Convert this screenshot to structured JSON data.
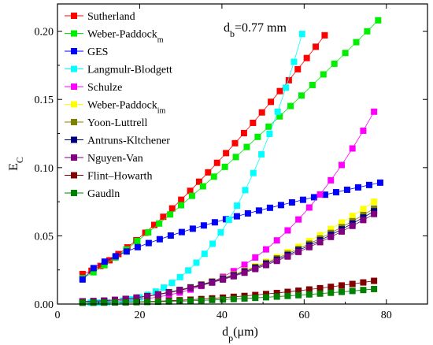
{
  "chart_data": {
    "type": "scatter",
    "annotation": {
      "base": "d",
      "sub": "b",
      "rest": "=0.77 mm"
    },
    "xlabel": {
      "base": "d",
      "sub": "p",
      "rest": "(μm)"
    },
    "ylabel": {
      "base": "E",
      "sub": "C",
      "rest": ""
    },
    "xlim": [
      0,
      90
    ],
    "ylim": [
      0,
      0.22
    ],
    "xticks": [
      "0",
      "20",
      "40",
      "60",
      "80"
    ],
    "yticks": [
      "0.00",
      "0.05",
      "0.10",
      "0.15",
      "0.20"
    ],
    "legend_position": "top-left",
    "series": [
      {
        "name": "Sutherland",
        "sub": "",
        "color": "#ff0000",
        "x": [
          6.1,
          65
        ],
        "y": [
          0.022,
          0.197
        ],
        "exp": 1.3
      },
      {
        "name": "Weber-Paddock",
        "sub": "m",
        "color": "#00ee00",
        "x": [
          6.1,
          78
        ],
        "y": [
          0.019,
          0.208
        ],
        "exp": 1.15
      },
      {
        "name": "GES",
        "sub": "",
        "color": "#0000ff",
        "x": [
          6.1,
          78.5
        ],
        "y": [
          0.018,
          0.089
        ],
        "exp": 0.65
      },
      {
        "name": "Langmulr-Blodgett",
        "sub": "",
        "color": "#00ffff",
        "x": [
          6.1,
          59.5
        ],
        "y": [
          0.001,
          0.198
        ],
        "exp": 2.9
      },
      {
        "name": "Schulze",
        "sub": "",
        "color": "#ff00ff",
        "x": [
          6.1,
          77
        ],
        "y": [
          0.002,
          0.141
        ],
        "exp": 2.8
      },
      {
        "name": "Weber-Paddock",
        "sub": "im",
        "color": "#ffff00",
        "x": [
          6.1,
          77
        ],
        "y": [
          0.002,
          0.075
        ],
        "exp": 2.0
      },
      {
        "name": "Yoon-Luttrell",
        "sub": "",
        "color": "#808000",
        "x": [
          6.1,
          77
        ],
        "y": [
          0.002,
          0.07
        ],
        "exp": 1.9
      },
      {
        "name": "Antruns-Kltchener",
        "sub": "",
        "color": "#00007f",
        "x": [
          6.1,
          77
        ],
        "y": [
          0.002,
          0.068
        ],
        "exp": 1.9
      },
      {
        "name": "Nguyen-Van",
        "sub": "",
        "color": "#800080",
        "x": [
          6.1,
          77
        ],
        "y": [
          0.002,
          0.066
        ],
        "exp": 1.9
      },
      {
        "name": "Flint–Howarth",
        "sub": "",
        "color": "#800000",
        "x": [
          6.1,
          77
        ],
        "y": [
          0.001,
          0.017
        ],
        "exp": 2.0
      },
      {
        "name": "Gaudln",
        "sub": "",
        "color": "#008000",
        "x": [
          6.1,
          77
        ],
        "y": [
          0.001,
          0.011
        ],
        "exp": 2.0
      }
    ]
  }
}
